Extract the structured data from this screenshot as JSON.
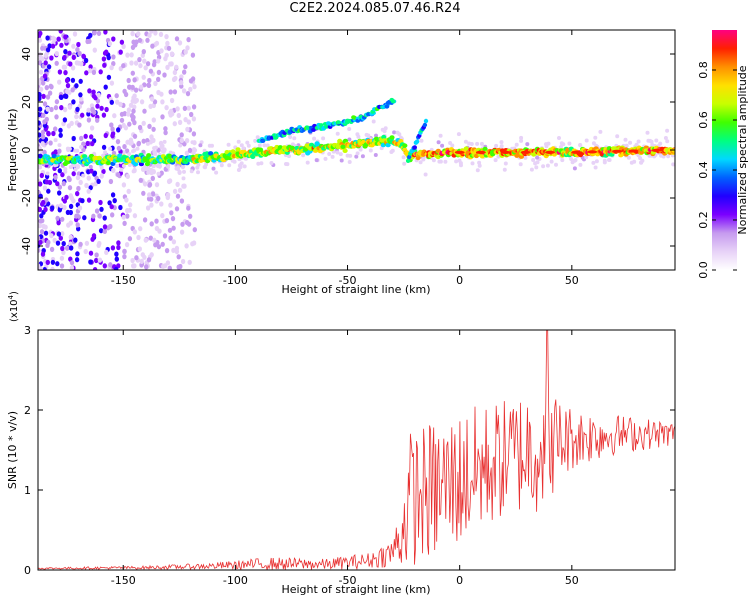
{
  "figure_title": "C2E2.2024.085.07.46.R24",
  "colors": {
    "snr_line": "#e83030",
    "colormap": [
      "#ffffff",
      "#e7d2f7",
      "#c69bef",
      "#7b00ff",
      "#2000ff",
      "#0060ff",
      "#00d8ff",
      "#00ff80",
      "#40ff00",
      "#c8ff00",
      "#ffe000",
      "#ff9000",
      "#ff2000",
      "#ff0080"
    ]
  },
  "chart_data": [
    {
      "type": "heatmap",
      "name": "spectrogram",
      "xlabel": "Height of straight line (km)",
      "ylabel": "Frequency (Hz)",
      "xlim": [
        -188,
        96
      ],
      "ylim": [
        -50,
        50
      ],
      "xticks": [
        -150,
        -100,
        -50,
        0,
        50
      ],
      "yticks": [
        -40,
        -20,
        0,
        20,
        40
      ],
      "colorbar": {
        "label": "Normalized spectral amplitude",
        "range": [
          0,
          0.96
        ],
        "ticks": [
          0.0,
          0.2,
          0.4,
          0.6,
          0.8
        ]
      },
      "description_tracks": [
        {
          "name": "main trace",
          "x": [
            -188,
            -150,
            -120,
            -100,
            -80,
            -60,
            -40,
            -30,
            -26,
            -23,
            -20,
            0,
            50,
            96
          ],
          "freq_hz": [
            -4,
            -4,
            -4,
            -2,
            0,
            1,
            3,
            4,
            2,
            -3,
            -2,
            -1,
            -1,
            0
          ]
        },
        {
          "name": "upper branch",
          "x": [
            -90,
            -75,
            -60,
            -45,
            -35,
            -30
          ],
          "freq_hz": [
            4,
            8,
            10,
            13,
            18,
            20
          ]
        },
        {
          "name": "hook",
          "x": [
            -23,
            -20,
            -17,
            -15
          ],
          "freq_hz": [
            -4,
            2,
            8,
            12
          ]
        }
      ]
    },
    {
      "type": "line",
      "name": "snr",
      "xlabel": "Height of straight line (km)",
      "ylabel": "SNR (10 * v/v)",
      "y_multiplier": "(x10",
      "y_multiplier_exp": "4",
      "y_multiplier_close": ")",
      "xlim": [
        -188,
        96
      ],
      "ylim": [
        0,
        3
      ],
      "xticks": [
        -150,
        -100,
        -50,
        0,
        50
      ],
      "yticks": [
        0,
        1,
        2,
        3
      ],
      "envelope": [
        {
          "x": -188,
          "mean": 0.02,
          "amp": 0.01
        },
        {
          "x": -140,
          "mean": 0.03,
          "amp": 0.02
        },
        {
          "x": -110,
          "mean": 0.05,
          "amp": 0.04
        },
        {
          "x": -85,
          "mean": 0.08,
          "amp": 0.08
        },
        {
          "x": -60,
          "mean": 0.07,
          "amp": 0.07
        },
        {
          "x": -40,
          "mean": 0.12,
          "amp": 0.1
        },
        {
          "x": -30,
          "mean": 0.22,
          "amp": 0.18
        },
        {
          "x": -26,
          "mean": 0.45,
          "amp": 0.45
        },
        {
          "x": -22,
          "mean": 0.9,
          "amp": 0.85
        },
        {
          "x": -10,
          "mean": 1.0,
          "amp": 0.9
        },
        {
          "x": 5,
          "mean": 1.2,
          "amp": 0.85
        },
        {
          "x": 20,
          "mean": 1.4,
          "amp": 0.75
        },
        {
          "x": 35,
          "mean": 1.55,
          "amp": 0.85
        },
        {
          "x": 50,
          "mean": 1.65,
          "amp": 0.4
        },
        {
          "x": 70,
          "mean": 1.7,
          "amp": 0.25
        },
        {
          "x": 96,
          "mean": 1.7,
          "amp": 0.15
        }
      ],
      "peak": {
        "x": 39,
        "y": 3.0
      }
    }
  ]
}
